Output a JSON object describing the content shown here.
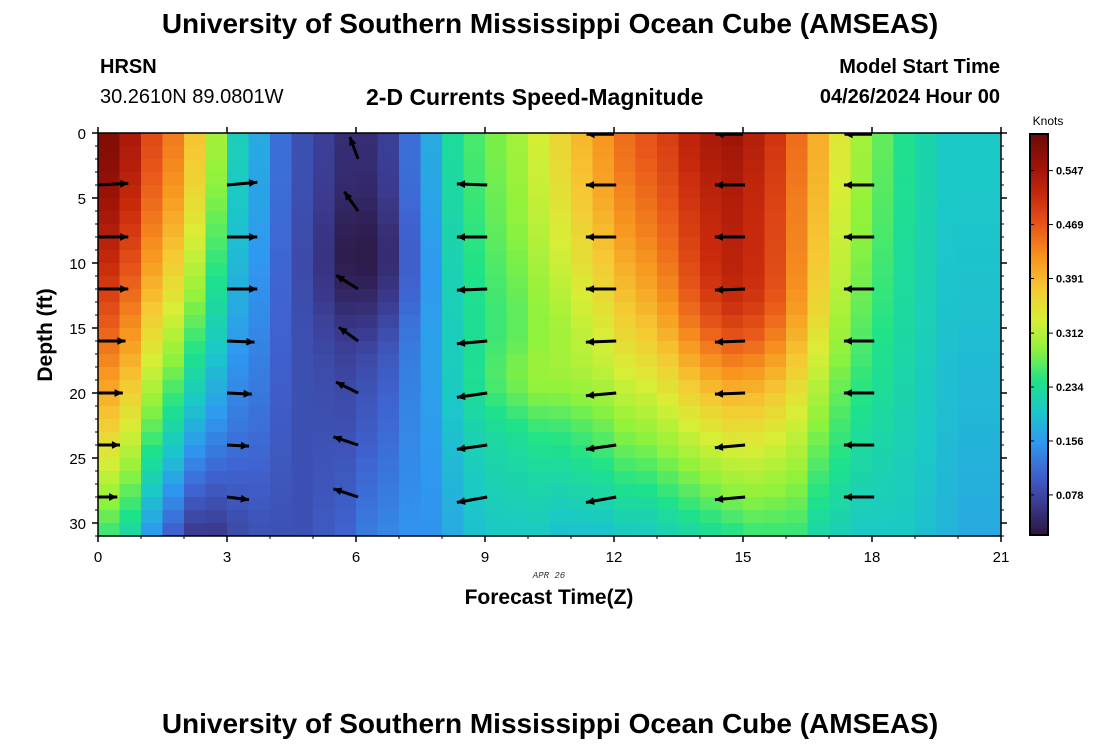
{
  "header": {
    "title": "University of Southern Mississippi Ocean Cube (AMSEAS)",
    "station": "HRSN",
    "coords": "30.2610N  89.0801W",
    "subtitle": "2-D Currents Speed-Magnitude",
    "model_start_label": "Model Start Time",
    "model_start_value": "04/26/2024 Hour 00"
  },
  "footer": {
    "title": "University of Southern Mississippi Ocean Cube (AMSEAS)"
  },
  "chart_data": {
    "type": "heatmap",
    "title": "2-D Currents Speed-Magnitude",
    "xlabel": "Forecast Time(Z)",
    "ylabel": "Depth (ft)",
    "date_label": "APR 26",
    "xlim": [
      0,
      21
    ],
    "ylim": [
      0,
      31
    ],
    "y_inverted": true,
    "xticks": [
      0,
      3,
      6,
      9,
      12,
      15,
      18,
      21
    ],
    "yticks": [
      0,
      5,
      10,
      15,
      20,
      25,
      30
    ],
    "colorbar": {
      "label": "Knots",
      "range": [
        0.02,
        0.6
      ],
      "ticks": [
        "0.547",
        "0.469",
        "0.391",
        "0.312",
        "0.234",
        "0.156",
        "0.078"
      ],
      "colors": [
        "#2b1640",
        "#3b3a8e",
        "#3f63d0",
        "#2f98f0",
        "#1bc8c8",
        "#1ee28a",
        "#8ef23c",
        "#d8ee36",
        "#f6c833",
        "#f7941f",
        "#e9581a",
        "#c92a0c",
        "#9b1208",
        "#6e0a05"
      ]
    },
    "speed_columns": {
      "hour": [
        0.25,
        0.75,
        1.25,
        1.75,
        2.25,
        2.75,
        3.25,
        3.75,
        4.25,
        4.75,
        5.25,
        5.75,
        6.25,
        6.75,
        7.25,
        7.75,
        8.25,
        8.75,
        9.25,
        9.75,
        10.25,
        10.75,
        11.25,
        11.75,
        12.25,
        12.75,
        13.25,
        13.75,
        14.25,
        14.75,
        15.25,
        15.75,
        16.25,
        16.75,
        17.25,
        17.75,
        18.25,
        18.75,
        19.25,
        19.75,
        20.25,
        20.75
      ],
      "surface_knots": [
        0.58,
        0.54,
        0.48,
        0.44,
        0.38,
        0.3,
        0.21,
        0.17,
        0.12,
        0.09,
        0.07,
        0.05,
        0.05,
        0.07,
        0.12,
        0.17,
        0.23,
        0.26,
        0.28,
        0.3,
        0.33,
        0.36,
        0.39,
        0.42,
        0.45,
        0.47,
        0.49,
        0.52,
        0.54,
        0.55,
        0.53,
        0.5,
        0.45,
        0.4,
        0.34,
        0.3,
        0.27,
        0.24,
        0.22,
        0.2,
        0.2,
        0.2
      ],
      "bottom_knots": [
        0.25,
        0.22,
        0.15,
        0.1,
        0.06,
        0.06,
        0.08,
        0.09,
        0.09,
        0.09,
        0.1,
        0.11,
        0.13,
        0.14,
        0.15,
        0.15,
        0.17,
        0.19,
        0.2,
        0.2,
        0.2,
        0.19,
        0.19,
        0.19,
        0.2,
        0.2,
        0.21,
        0.22,
        0.23,
        0.24,
        0.25,
        0.25,
        0.25,
        0.22,
        0.21,
        0.2,
        0.2,
        0.2,
        0.19,
        0.18,
        0.17,
        0.17
      ]
    },
    "vectors": {
      "depths_ft": [
        4,
        8,
        12,
        16,
        20,
        24,
        28
      ],
      "columns": [
        {
          "hour": 0,
          "depth_ft": [
            4,
            8,
            12,
            16,
            20,
            24,
            28
          ],
          "u_knots": [
            0.55,
            0.55,
            0.55,
            0.5,
            0.45,
            0.4,
            0.35
          ],
          "v_knots": [
            0.03,
            0.0,
            0.0,
            0.0,
            0.0,
            0.0,
            0.0
          ]
        },
        {
          "hour": 3,
          "depth_ft": [
            4,
            8,
            12,
            16,
            20,
            24,
            28
          ],
          "u_knots": [
            0.55,
            0.55,
            0.55,
            0.5,
            0.45,
            0.4,
            0.4
          ],
          "v_knots": [
            0.05,
            0.0,
            0.0,
            -0.02,
            -0.02,
            -0.02,
            -0.05
          ]
        },
        {
          "hour": 6,
          "depth_ft": [
            2,
            6,
            12,
            16,
            20,
            24,
            28
          ],
          "u_knots": [
            -0.15,
            -0.25,
            -0.4,
            -0.35,
            -0.4,
            -0.45,
            -0.45
          ],
          "v_knots": [
            0.4,
            0.35,
            0.25,
            0.25,
            0.2,
            0.15,
            0.15
          ]
        },
        {
          "hour": 9,
          "depth_ft": [
            4,
            8,
            12,
            16,
            20,
            24,
            28
          ],
          "u_knots": [
            -0.55,
            -0.55,
            -0.55,
            -0.55,
            -0.55,
            -0.55,
            -0.55
          ],
          "v_knots": [
            0.02,
            0.0,
            -0.02,
            -0.05,
            -0.08,
            -0.08,
            -0.1
          ]
        },
        {
          "hour": 12,
          "depth_ft": [
            4,
            8,
            12,
            16,
            20,
            24,
            28
          ],
          "u_knots": [
            -0.55,
            -0.55,
            -0.55,
            -0.55,
            -0.55,
            -0.55,
            -0.55
          ],
          "v_knots": [
            0.0,
            0.0,
            0.0,
            -0.02,
            -0.05,
            -0.08,
            -0.1
          ]
        },
        {
          "hour": 15,
          "depth_ft": [
            4,
            8,
            12,
            16,
            20,
            24,
            28
          ],
          "u_knots": [
            -0.55,
            -0.55,
            -0.55,
            -0.55,
            -0.55,
            -0.55,
            -0.55
          ],
          "v_knots": [
            0.0,
            0.0,
            -0.02,
            -0.02,
            -0.02,
            -0.05,
            -0.05
          ]
        },
        {
          "hour": 18,
          "depth_ft": [
            4,
            8,
            12,
            16,
            20,
            24,
            28
          ],
          "u_knots": [
            -0.55,
            -0.55,
            -0.55,
            -0.55,
            -0.55,
            -0.55,
            -0.55
          ],
          "v_knots": [
            0.0,
            0.0,
            0.0,
            0.0,
            0.0,
            0.0,
            0.0
          ]
        }
      ],
      "top_row": {
        "hours": [
          12,
          15,
          18
        ],
        "u_knots": [
          -0.5,
          -0.5,
          -0.5
        ],
        "v_knots": [
          0,
          0,
          0
        ]
      }
    }
  }
}
